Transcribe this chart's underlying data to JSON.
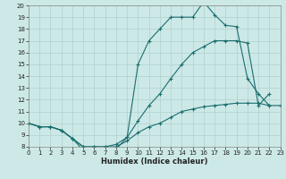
{
  "xlabel": "Humidex (Indice chaleur)",
  "bg_color": "#cce9e7",
  "line_color": "#1a6e6e",
  "grid_color": "#afd0ce",
  "xlim": [
    0,
    23
  ],
  "ylim": [
    8,
    20
  ],
  "yticks": [
    8,
    9,
    10,
    11,
    12,
    13,
    14,
    15,
    16,
    17,
    18,
    19,
    20
  ],
  "xticks": [
    0,
    1,
    2,
    3,
    4,
    5,
    6,
    7,
    8,
    9,
    10,
    11,
    12,
    13,
    14,
    15,
    16,
    17,
    18,
    19,
    20,
    21,
    22,
    23
  ],
  "line_max_x": [
    0,
    1,
    2,
    3,
    4,
    5,
    6,
    7,
    8,
    9,
    10,
    11,
    12,
    13,
    14,
    15,
    16,
    17,
    18,
    19,
    20,
    21,
    22
  ],
  "line_max_y": [
    10.0,
    9.7,
    9.7,
    9.4,
    8.7,
    7.7,
    7.7,
    7.8,
    7.8,
    8.8,
    15.0,
    17.0,
    18.0,
    19.0,
    19.0,
    19.0,
    20.3,
    19.2,
    18.3,
    18.2,
    13.8,
    12.5,
    11.5
  ],
  "line_mid_x": [
    0,
    1,
    2,
    3,
    4,
    5,
    6,
    7,
    8,
    9,
    10,
    11,
    12,
    13,
    14,
    15,
    16,
    17,
    18,
    19,
    20,
    21,
    22
  ],
  "line_mid_y": [
    10.0,
    9.7,
    9.7,
    9.4,
    8.7,
    8.0,
    8.0,
    8.0,
    8.2,
    8.8,
    10.2,
    11.5,
    12.5,
    13.8,
    15.0,
    16.0,
    16.5,
    17.0,
    17.0,
    17.0,
    16.8,
    11.5,
    12.5
  ],
  "line_min_x": [
    0,
    1,
    2,
    3,
    4,
    5,
    6,
    7,
    8,
    9,
    10,
    11,
    12,
    13,
    14,
    15,
    16,
    17,
    18,
    19,
    20,
    21,
    22,
    23
  ],
  "line_min_y": [
    10.0,
    9.7,
    9.7,
    9.4,
    8.7,
    8.0,
    8.0,
    8.0,
    8.0,
    8.5,
    9.2,
    9.7,
    10.0,
    10.5,
    11.0,
    11.2,
    11.4,
    11.5,
    11.6,
    11.7,
    11.7,
    11.7,
    11.5,
    11.5
  ]
}
